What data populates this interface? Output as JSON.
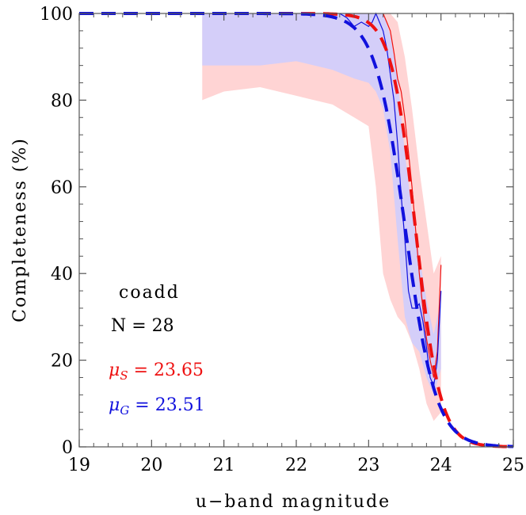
{
  "chart_data": {
    "type": "line",
    "title": "",
    "xlabel": "u−band magnitude",
    "ylabel": "Completeness (%)",
    "xlim": [
      19,
      25
    ],
    "ylim": [
      0,
      100
    ],
    "x_ticks": [
      "19",
      "20",
      "21",
      "22",
      "23",
      "24",
      "25"
    ],
    "y_ticks": [
      "0",
      "20",
      "40",
      "60",
      "80",
      "100"
    ],
    "annotations": {
      "label": "coadd",
      "count": "N = 28",
      "mu_s": {
        "symbol": "μ",
        "sub": "S",
        "text": " = 23.65",
        "value": 23.65,
        "color": "#ee1111"
      },
      "mu_g": {
        "symbol": "μ",
        "sub": "G",
        "text": " = 23.51",
        "value": 23.51,
        "color": "#1111dd"
      }
    },
    "series": [
      {
        "name": "stars (S) fit",
        "style": "dashed",
        "color": "#ee1111",
        "mu": 23.65,
        "width": 0.17
      },
      {
        "name": "galaxies (G) fit",
        "style": "dashed",
        "color": "#1111dd",
        "mu": 23.51,
        "width": 0.21
      },
      {
        "name": "stars (S) measured",
        "style": "solid",
        "color": "#ee1111",
        "x": [
          23.2,
          23.25,
          23.3,
          23.35,
          23.4,
          23.45,
          23.5,
          23.55,
          23.6,
          23.65,
          23.7,
          23.75,
          23.8,
          23.85,
          23.9,
          23.95,
          24.0
        ],
        "y": [
          100,
          98,
          96,
          91,
          85,
          82,
          76,
          68,
          60,
          50,
          40,
          32,
          25,
          20,
          16,
          22,
          42
        ]
      },
      {
        "name": "galaxies (G) measured",
        "style": "solid",
        "color": "#1111dd",
        "x": [
          22.6,
          22.7,
          22.8,
          22.9,
          23.0,
          23.05,
          23.1,
          23.15,
          23.2,
          23.25,
          23.3,
          23.35,
          23.4,
          23.45,
          23.5,
          23.55,
          23.6,
          23.65,
          23.7,
          23.75,
          23.8,
          23.85,
          23.9,
          23.95,
          24.0
        ],
        "y": [
          100,
          99,
          97,
          98,
          97,
          98,
          100,
          98,
          96,
          92,
          86,
          80,
          70,
          58,
          48,
          36,
          32,
          32,
          33,
          29,
          23,
          16,
          14,
          20,
          36
        ]
      },
      {
        "name": "stars (S) uncertainty band",
        "style": "band",
        "color": "#ffcccc",
        "x": [
          20.7,
          21.0,
          21.5,
          22.0,
          22.5,
          22.8,
          23.0,
          23.1,
          23.2,
          23.3,
          23.4,
          23.5,
          23.6,
          23.7,
          23.8,
          23.9,
          24.0
        ],
        "upper": [
          100,
          100,
          100,
          100,
          100,
          100,
          100,
          100,
          100,
          100,
          98,
          90,
          78,
          64,
          52,
          40,
          44
        ],
        "lower": [
          80,
          82,
          83,
          81,
          79,
          76,
          74,
          60,
          40,
          34,
          30,
          28,
          24,
          18,
          10,
          6,
          8
        ]
      },
      {
        "name": "galaxies (G) uncertainty band",
        "style": "band",
        "color": "#ccccff",
        "x": [
          20.7,
          21.0,
          21.5,
          22.0,
          22.5,
          22.8,
          23.0,
          23.1,
          23.2,
          23.3,
          23.4,
          23.5,
          23.6,
          23.7,
          23.8,
          23.9,
          24.0
        ],
        "upper": [
          100,
          100,
          100,
          100,
          100,
          100,
          100,
          100,
          100,
          95,
          85,
          68,
          54,
          44,
          34,
          26,
          34
        ],
        "lower": [
          88,
          88,
          88,
          89,
          87,
          85,
          84,
          82,
          78,
          68,
          48,
          30,
          24,
          22,
          16,
          12,
          18
        ]
      }
    ]
  }
}
